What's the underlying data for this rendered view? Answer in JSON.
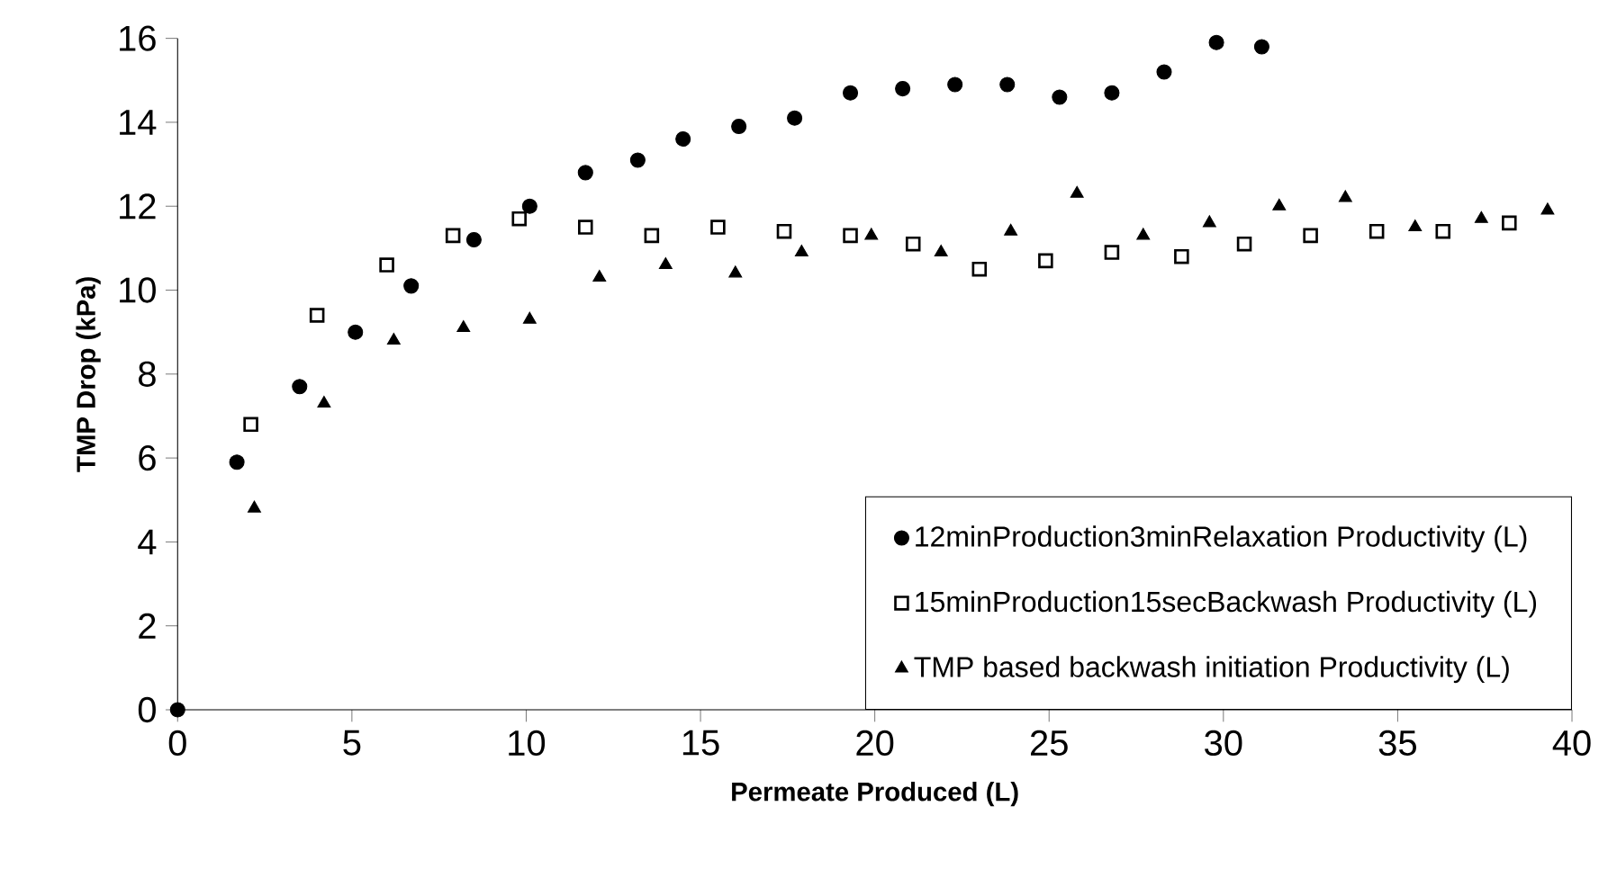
{
  "chart_data": {
    "type": "scatter",
    "xlabel": "Permeate Produced (L)",
    "ylabel": "TMP Drop (kPa)",
    "xlim": [
      0,
      40
    ],
    "ylim": [
      0,
      16
    ],
    "xticks": [
      0,
      5,
      10,
      15,
      20,
      25,
      30,
      35,
      40
    ],
    "yticks": [
      0,
      2,
      4,
      6,
      8,
      10,
      12,
      14,
      16
    ],
    "grid": false,
    "legend": "bottom right",
    "series": [
      {
        "name": "12minProduction3minRelaxation Productivity (L)",
        "color": "#000000",
        "marker": "circle",
        "x": [
          0,
          1.7,
          3.5,
          5.1,
          6.7,
          8.5,
          10.1,
          11.7,
          13.2,
          14.5,
          16.1,
          17.7,
          19.3,
          20.8,
          22.3,
          23.8,
          25.3,
          26.8,
          28.3,
          29.8,
          31.1
        ],
        "values": [
          0,
          5.9,
          7.7,
          9.0,
          10.1,
          11.2,
          12.0,
          12.8,
          13.1,
          13.6,
          13.9,
          14.1,
          14.7,
          14.8,
          14.9,
          14.9,
          14.6,
          14.7,
          15.2,
          15.9,
          15.8
        ]
      },
      {
        "name": "15minProduction15secBackwash Productivity (L)",
        "color": "#000000",
        "marker": "square",
        "x": [
          2.1,
          4.0,
          6.0,
          7.9,
          9.8,
          11.7,
          13.6,
          15.5,
          17.4,
          19.3,
          21.1,
          23.0,
          24.9,
          26.8,
          28.8,
          30.6,
          32.5,
          34.4,
          36.3,
          38.2
        ],
        "values": [
          6.8,
          9.4,
          10.6,
          11.3,
          11.7,
          11.5,
          11.3,
          11.5,
          11.4,
          11.3,
          11.1,
          10.5,
          10.7,
          10.9,
          10.8,
          11.1,
          11.3,
          11.4,
          11.4,
          11.6
        ]
      },
      {
        "name": "TMP based backwash initiation Productivity (L)",
        "color": "#000000",
        "marker": "triangle",
        "x": [
          2.2,
          4.2,
          6.2,
          8.2,
          10.1,
          12.1,
          14.0,
          16.0,
          17.9,
          19.9,
          21.9,
          23.9,
          25.8,
          27.7,
          29.6,
          31.6,
          33.5,
          35.5,
          37.4,
          39.3
        ],
        "values": [
          4.8,
          7.3,
          8.8,
          9.1,
          9.3,
          10.3,
          10.6,
          10.4,
          10.9,
          11.3,
          10.9,
          11.4,
          12.3,
          11.3,
          11.6,
          12.0,
          12.2,
          11.5,
          11.7,
          11.9
        ]
      }
    ]
  }
}
